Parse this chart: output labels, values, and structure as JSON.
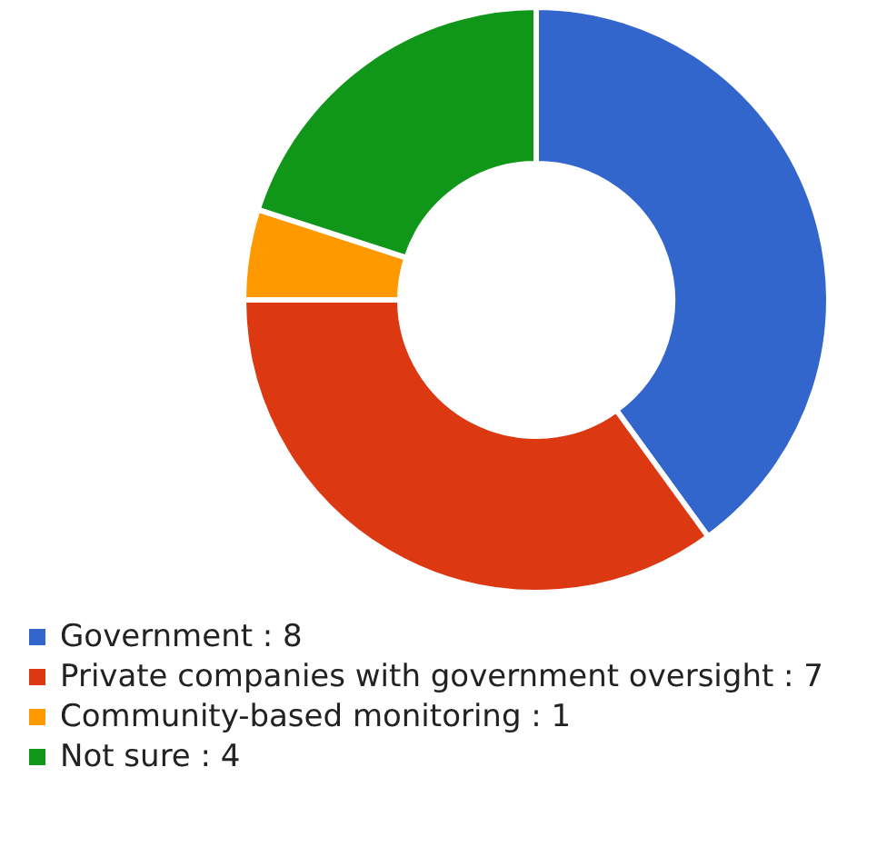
{
  "chart_data": {
    "type": "donut",
    "categories": [
      "Government : 8",
      "Private companies with government oversight : 7",
      "Community-based monitoring : 1",
      "Not sure : 4"
    ],
    "values": [
      8,
      7,
      1,
      4
    ],
    "colors": [
      "#3366cc",
      "#dc3912",
      "#ff9900",
      "#109618"
    ],
    "legend": "bottom"
  }
}
